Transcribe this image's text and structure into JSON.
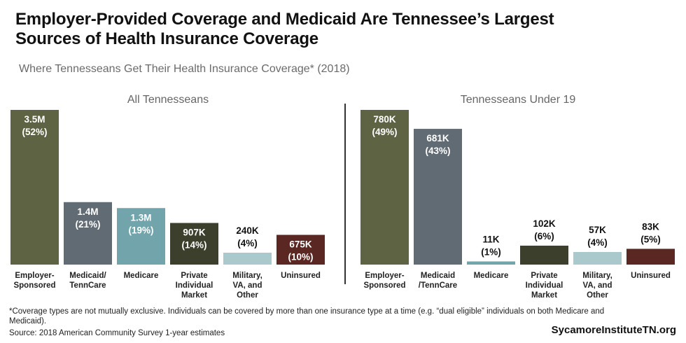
{
  "title_line1": "Employer-Provided Coverage and Medicaid Are Tennessee’s Largest",
  "title_line2": "Sources of Health Insurance Coverage",
  "subtitle": "Where Tennesseans Get Their Health Insurance Coverage* (2018)",
  "chart_data": [
    {
      "type": "bar",
      "title": "All Tennesseans",
      "categories": [
        "Employer-Sponsored",
        "Medicaid/TennCare",
        "Medicare",
        "Private Individual Market",
        "Military, VA, and Other",
        "Uninsured"
      ],
      "category_lines": [
        [
          "Employer-",
          "Sponsored"
        ],
        [
          "Medicaid/",
          "TennCare"
        ],
        [
          "Medicare"
        ],
        [
          "Private",
          "Individual",
          "Market"
        ],
        [
          "Military,",
          "VA, and",
          "Other"
        ],
        [
          "Uninsured"
        ]
      ],
      "values_pct": [
        52,
        21,
        19,
        14,
        4,
        10
      ],
      "value_labels": [
        "3.5M",
        "1.4M",
        "1.3M",
        "907K",
        "240K",
        "675K"
      ],
      "pct_labels": [
        "(52%)",
        "(21%)",
        "(19%)",
        "(14%)",
        "(4%)",
        "(10%)"
      ],
      "colors": [
        "#5e6443",
        "#616b74",
        "#72a4ac",
        "#3c3f2b",
        "#aac9cc",
        "#5a2722"
      ]
    },
    {
      "type": "bar",
      "title": "Tennesseans Under 19",
      "categories": [
        "Employer-Sponsored",
        "Medicaid/TennCare",
        "Medicare",
        "Private Individual Market",
        "Military, VA, and Other",
        "Uninsured"
      ],
      "category_lines": [
        [
          "Employer-",
          "Sponsored"
        ],
        [
          "Medicaid",
          "/TennCare"
        ],
        [
          "Medicare"
        ],
        [
          "Private",
          "Individual",
          "Market"
        ],
        [
          "Military,",
          "VA, and",
          "Other"
        ],
        [
          "Uninsured"
        ]
      ],
      "values_pct": [
        49,
        43,
        1,
        6,
        4,
        5
      ],
      "value_labels": [
        "780K",
        "681K",
        "11K",
        "102K",
        "57K",
        "83K"
      ],
      "pct_labels": [
        "(49%)",
        "(43%)",
        "(1%)",
        "(6%)",
        "(4%)",
        "(5%)"
      ],
      "colors": [
        "#5e6443",
        "#616b74",
        "#72a4ac",
        "#3c3f2b",
        "#aac9cc",
        "#5a2722"
      ]
    }
  ],
  "footnote1": "*Coverage types are not mutually exclusive. Individuals can be covered by more than one insurance type at a time (e.g. “dual eligible” individuals on both Medicare and",
  "footnote2": "Medicaid).",
  "source": "Source: 2018 American Community Survey 1-year estimates",
  "brand": "SycamoreInstituteTN.org"
}
